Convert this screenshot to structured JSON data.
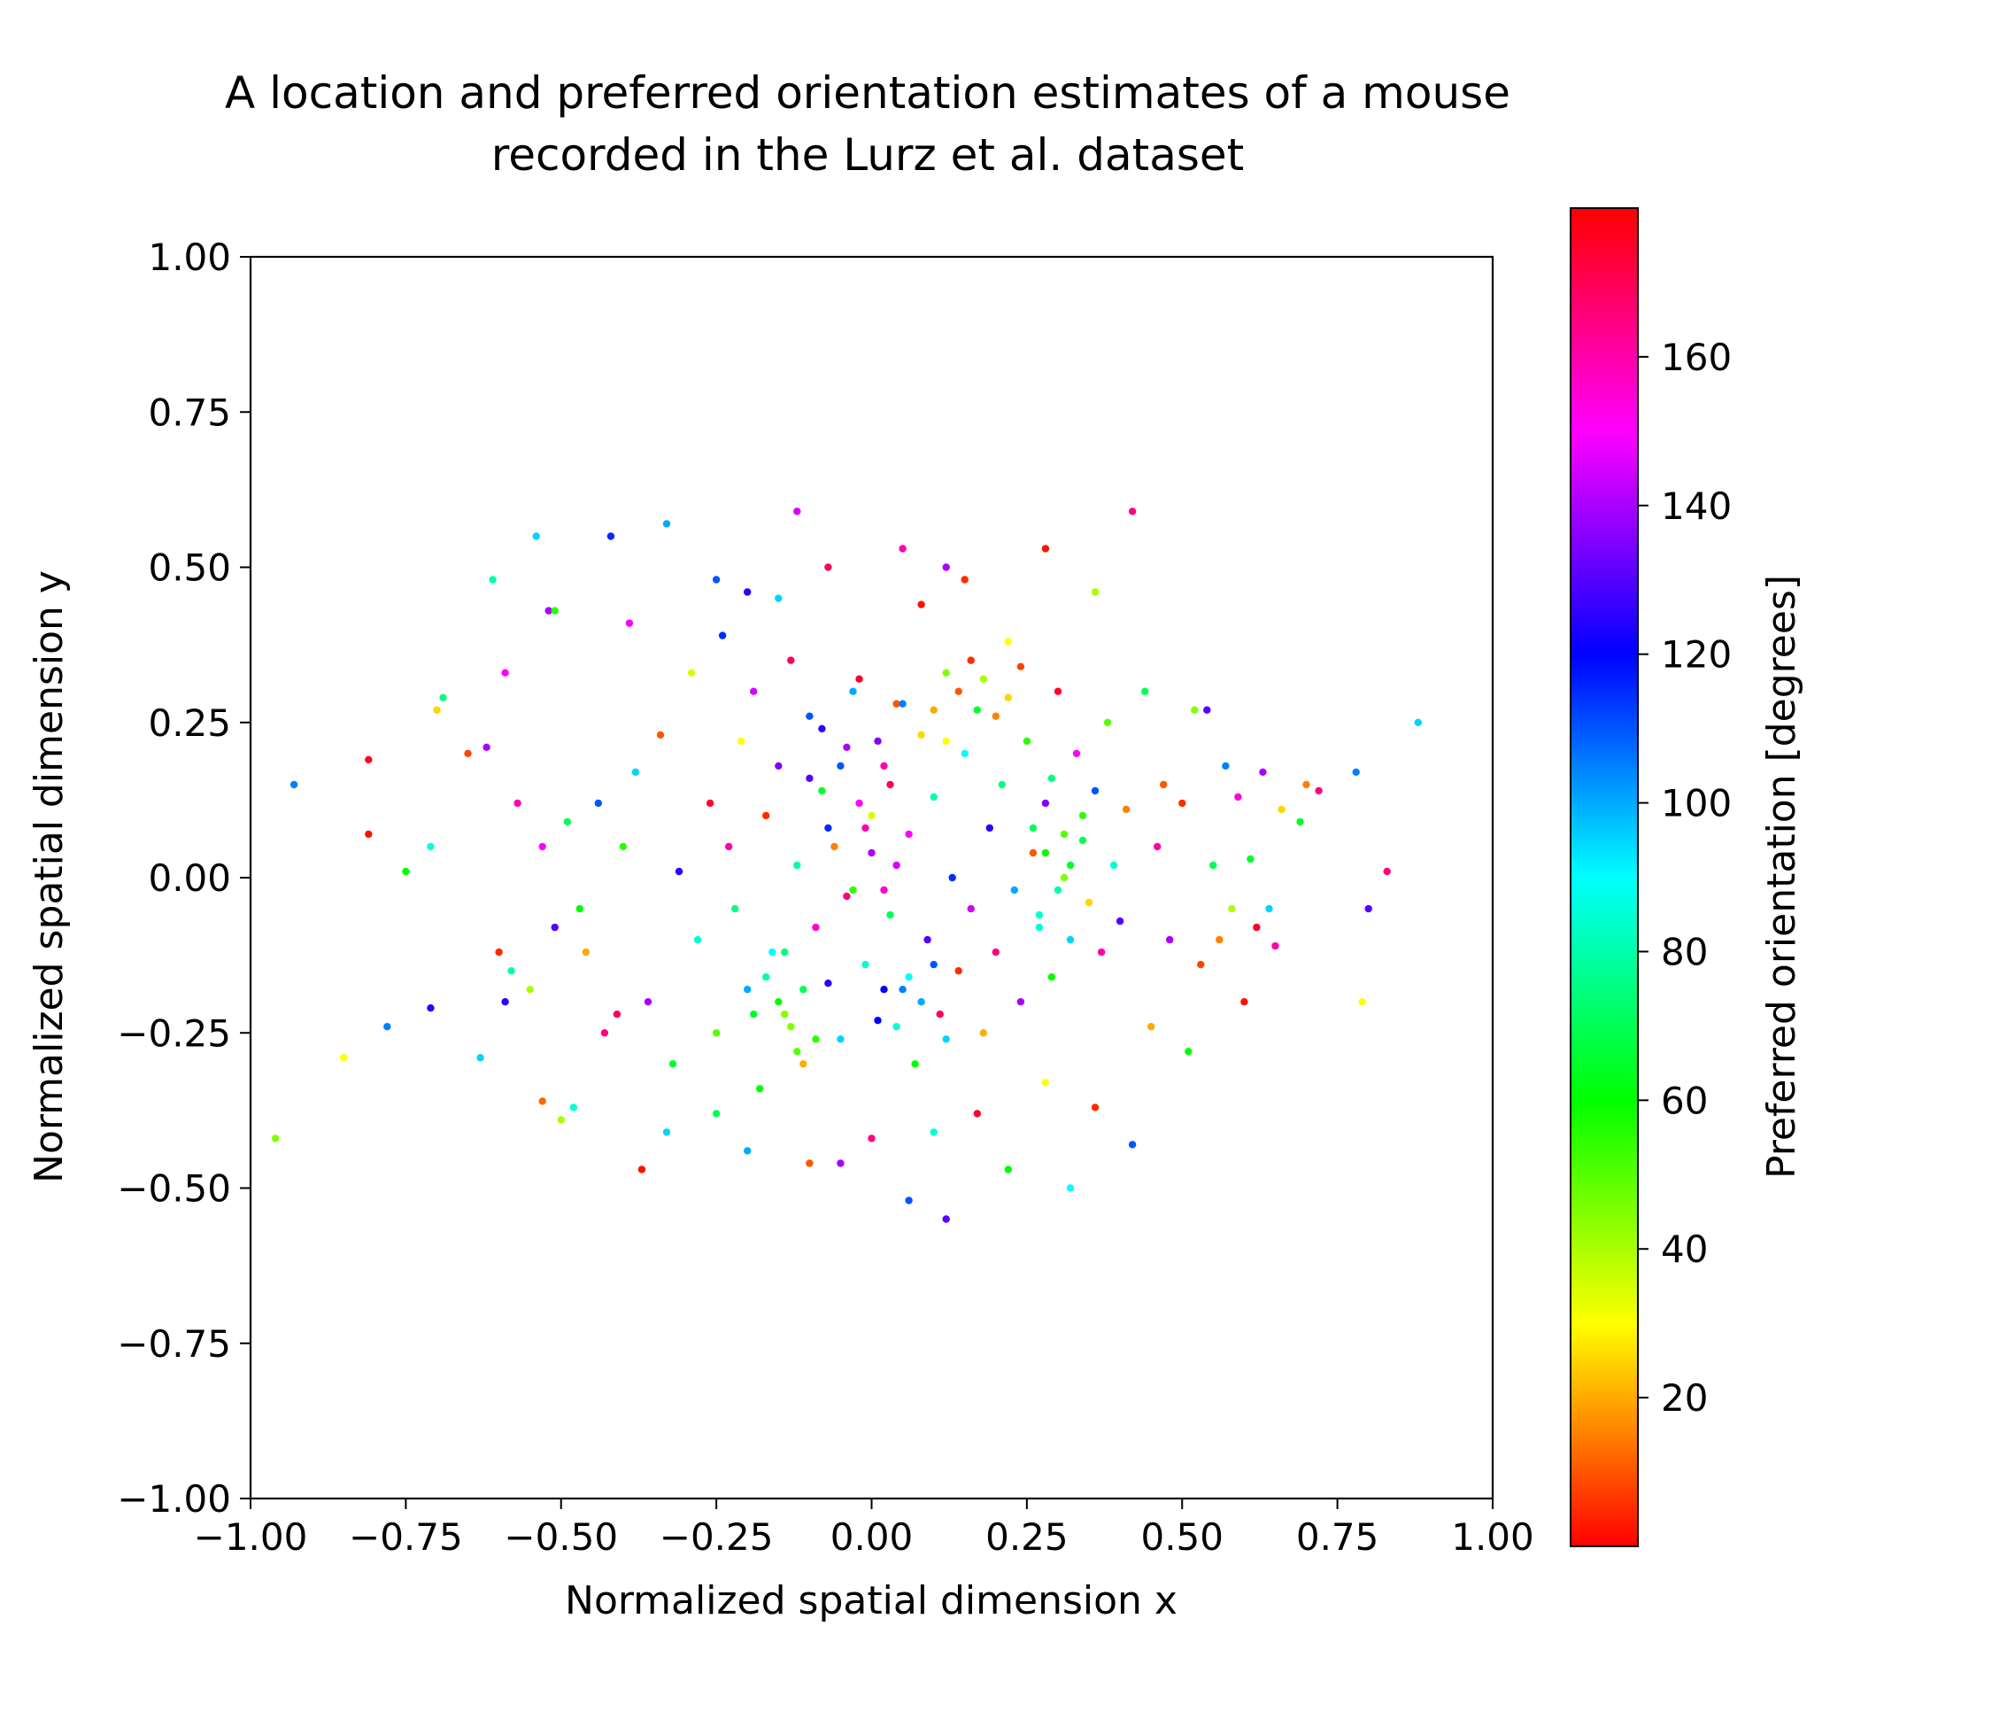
{
  "chart_data": {
    "type": "scatter",
    "title_lines": [
      "A location and preferred orientation estimates of a mouse",
      "recorded in the Lurz et al. dataset"
    ],
    "xlabel": "Normalized spatial dimension x",
    "ylabel": "Normalized spatial dimension y",
    "xlim": [
      -1.0,
      1.0
    ],
    "ylim": [
      -1.0,
      1.0
    ],
    "xticks": [
      -1.0,
      -0.75,
      -0.5,
      -0.25,
      0.0,
      0.25,
      0.5,
      0.75,
      1.0
    ],
    "xtick_labels": [
      "−1.00",
      "−0.75",
      "−0.50",
      "−0.25",
      "0.00",
      "0.25",
      "0.50",
      "0.75",
      "1.00"
    ],
    "yticks": [
      -1.0,
      -0.75,
      -0.5,
      -0.25,
      0.0,
      0.25,
      0.5,
      0.75,
      1.0
    ],
    "ytick_labels": [
      "−1.00",
      "−0.75",
      "−0.50",
      "−0.25",
      "0.00",
      "0.25",
      "0.50",
      "0.75",
      "1.00"
    ],
    "grid": false,
    "colorbar": {
      "label": "Preferred orientation [degrees]",
      "colormap": "hsv",
      "range": [
        0,
        180
      ],
      "ticks": [
        20,
        40,
        60,
        80,
        100,
        120,
        140,
        160
      ],
      "tick_labels": [
        "20",
        "40",
        "60",
        "80",
        "100",
        "120",
        "140",
        "160"
      ]
    },
    "points": [
      [
        -0.96,
        -0.42,
        45
      ],
      [
        -0.93,
        0.15,
        105
      ],
      [
        -0.85,
        -0.29,
        30
      ],
      [
        -0.81,
        0.19,
        175
      ],
      [
        -0.81,
        0.07,
        2
      ],
      [
        -0.78,
        -0.24,
        105
      ],
      [
        -0.75,
        0.01,
        60
      ],
      [
        -0.71,
        -0.21,
        125
      ],
      [
        -0.71,
        0.05,
        85
      ],
      [
        -0.7,
        0.27,
        25
      ],
      [
        -0.69,
        0.29,
        75
      ],
      [
        -0.65,
        0.2,
        8
      ],
      [
        -0.63,
        -0.29,
        95
      ],
      [
        -0.62,
        0.21,
        140
      ],
      [
        -0.61,
        0.48,
        80
      ],
      [
        -0.59,
        -0.2,
        125
      ],
      [
        -0.59,
        0.33,
        150
      ],
      [
        -0.57,
        0.12,
        160
      ],
      [
        -0.54,
        0.55,
        95
      ],
      [
        -0.53,
        -0.36,
        12
      ],
      [
        -0.52,
        0.43,
        140
      ],
      [
        -0.51,
        0.43,
        55
      ],
      [
        -0.5,
        -0.39,
        40
      ],
      [
        -0.48,
        -0.37,
        85
      ],
      [
        -0.47,
        -0.05,
        60
      ],
      [
        -0.42,
        0.55,
        115
      ],
      [
        -0.41,
        -0.22,
        170
      ],
      [
        -0.39,
        0.41,
        150
      ],
      [
        -0.37,
        -0.47,
        2
      ],
      [
        -0.33,
        0.57,
        100
      ],
      [
        -0.33,
        -0.41,
        95
      ],
      [
        -0.6,
        -0.12,
        5
      ],
      [
        -0.58,
        -0.15,
        80
      ],
      [
        -0.55,
        -0.18,
        40
      ],
      [
        -0.53,
        0.05,
        150
      ],
      [
        -0.51,
        -0.08,
        130
      ],
      [
        -0.49,
        0.09,
        70
      ],
      [
        -0.46,
        -0.12,
        20
      ],
      [
        -0.44,
        0.12,
        110
      ],
      [
        -0.43,
        -0.25,
        165
      ],
      [
        -0.4,
        0.05,
        55
      ],
      [
        -0.38,
        0.17,
        95
      ],
      [
        -0.36,
        -0.2,
        140
      ],
      [
        -0.34,
        0.23,
        10
      ],
      [
        -0.32,
        -0.3,
        65
      ],
      [
        -0.31,
        0.01,
        125
      ],
      [
        -0.29,
        0.33,
        35
      ],
      [
        -0.28,
        -0.1,
        85
      ],
      [
        -0.26,
        0.12,
        175
      ],
      [
        -0.25,
        -0.25,
        50
      ],
      [
        -0.24,
        0.39,
        115
      ],
      [
        -0.23,
        0.05,
        160
      ],
      [
        -0.22,
        -0.05,
        75
      ],
      [
        -0.21,
        0.22,
        30
      ],
      [
        -0.2,
        -0.18,
        100
      ],
      [
        -0.19,
        0.3,
        145
      ],
      [
        -0.18,
        -0.34,
        60
      ],
      [
        -0.17,
        0.1,
        5
      ],
      [
        -0.16,
        -0.12,
        90
      ],
      [
        -0.15,
        0.18,
        135
      ],
      [
        -0.14,
        -0.22,
        45
      ],
      [
        -0.13,
        0.35,
        170
      ],
      [
        -0.12,
        0.02,
        80
      ],
      [
        -0.11,
        -0.3,
        20
      ],
      [
        -0.1,
        0.26,
        110
      ],
      [
        -0.09,
        -0.08,
        155
      ],
      [
        -0.08,
        0.14,
        65
      ],
      [
        -0.07,
        -0.17,
        125
      ],
      [
        -0.06,
        0.05,
        15
      ],
      [
        -0.05,
        -0.26,
        95
      ],
      [
        -0.04,
        0.21,
        140
      ],
      [
        -0.03,
        -0.02,
        55
      ],
      [
        -0.02,
        0.32,
        175
      ],
      [
        -0.01,
        -0.14,
        85
      ],
      [
        0.0,
        0.1,
        35
      ],
      [
        0.01,
        -0.23,
        120
      ],
      [
        0.02,
        0.18,
        160
      ],
      [
        0.03,
        -0.06,
        70
      ],
      [
        0.04,
        0.28,
        10
      ],
      [
        0.05,
        -0.18,
        105
      ],
      [
        0.06,
        0.07,
        150
      ],
      [
        0.07,
        -0.3,
        60
      ],
      [
        0.08,
        0.23,
        25
      ],
      [
        0.09,
        -0.1,
        130
      ],
      [
        0.1,
        0.13,
        80
      ],
      [
        0.11,
        -0.22,
        170
      ],
      [
        0.12,
        0.33,
        45
      ],
      [
        0.13,
        0.0,
        115
      ],
      [
        0.14,
        -0.15,
        5
      ],
      [
        0.15,
        0.2,
        90
      ],
      [
        0.16,
        -0.05,
        145
      ],
      [
        0.17,
        0.27,
        65
      ],
      [
        0.18,
        -0.25,
        20
      ],
      [
        0.19,
        0.08,
        125
      ],
      [
        0.2,
        -0.12,
        165
      ],
      [
        0.21,
        0.15,
        75
      ],
      [
        0.22,
        0.38,
        30
      ],
      [
        0.23,
        -0.02,
        100
      ],
      [
        0.24,
        -0.2,
        140
      ],
      [
        0.25,
        0.22,
        55
      ],
      [
        0.26,
        0.04,
        10
      ],
      [
        0.27,
        -0.08,
        85
      ],
      [
        0.28,
        0.12,
        135
      ],
      [
        0.29,
        -0.16,
        60
      ],
      [
        0.3,
        0.3,
        175
      ],
      [
        0.31,
        0.0,
        45
      ],
      [
        0.32,
        -0.1,
        95
      ],
      [
        0.33,
        0.2,
        150
      ],
      [
        0.34,
        0.06,
        70
      ],
      [
        0.35,
        -0.04,
        25
      ],
      [
        0.36,
        0.14,
        110
      ],
      [
        0.37,
        -0.12,
        160
      ],
      [
        0.38,
        0.25,
        50
      ],
      [
        0.39,
        0.02,
        85
      ],
      [
        0.4,
        -0.07,
        130
      ],
      [
        0.41,
        0.11,
        15
      ],
      [
        0.42,
        0.59,
        165
      ],
      [
        0.42,
        -0.43,
        110
      ],
      [
        0.44,
        0.3,
        70
      ],
      [
        0.45,
        -0.24,
        20
      ],
      [
        0.46,
        0.05,
        160
      ],
      [
        0.47,
        0.15,
        10
      ],
      [
        0.48,
        -0.1,
        140
      ],
      [
        0.5,
        0.12,
        5
      ],
      [
        0.51,
        -0.28,
        60
      ],
      [
        0.52,
        0.27,
        45
      ],
      [
        0.53,
        -0.14,
        8
      ],
      [
        0.54,
        0.27,
        130
      ],
      [
        0.55,
        0.02,
        70
      ],
      [
        0.56,
        -0.1,
        15
      ],
      [
        0.57,
        0.18,
        105
      ],
      [
        0.58,
        -0.05,
        40
      ],
      [
        0.59,
        0.13,
        155
      ],
      [
        0.6,
        -0.2,
        2
      ],
      [
        0.61,
        0.03,
        65
      ],
      [
        0.62,
        -0.08,
        175
      ],
      [
        0.63,
        0.17,
        140
      ],
      [
        0.64,
        -0.05,
        95
      ],
      [
        0.65,
        -0.11,
        160
      ],
      [
        0.66,
        0.11,
        25
      ],
      [
        0.69,
        0.09,
        65
      ],
      [
        0.7,
        0.15,
        15
      ],
      [
        0.72,
        0.14,
        165
      ],
      [
        0.78,
        0.17,
        105
      ],
      [
        0.79,
        -0.2,
        30
      ],
      [
        0.8,
        -0.05,
        130
      ],
      [
        0.83,
        0.01,
        165
      ],
      [
        0.88,
        0.25,
        95
      ],
      [
        -0.12,
        0.59,
        145
      ],
      [
        0.05,
        0.53,
        160
      ],
      [
        0.12,
        0.5,
        140
      ],
      [
        0.15,
        0.48,
        5
      ],
      [
        -0.25,
        0.48,
        110
      ],
      [
        -0.2,
        0.46,
        125
      ],
      [
        -0.15,
        0.45,
        95
      ],
      [
        0.08,
        0.44,
        2
      ],
      [
        -0.07,
        0.5,
        170
      ],
      [
        0.28,
        0.53,
        2
      ],
      [
        0.36,
        0.46,
        40
      ],
      [
        -0.05,
        -0.46,
        140
      ],
      [
        0.06,
        -0.52,
        110
      ],
      [
        0.12,
        -0.55,
        130
      ],
      [
        0.22,
        -0.47,
        60
      ],
      [
        0.32,
        -0.5,
        90
      ],
      [
        -0.1,
        -0.46,
        10
      ],
      [
        0.0,
        -0.42,
        165
      ],
      [
        -0.2,
        -0.44,
        100
      ],
      [
        0.36,
        -0.37,
        5
      ],
      [
        0.28,
        -0.33,
        30
      ],
      [
        -0.25,
        -0.38,
        70
      ],
      [
        0.1,
        -0.41,
        85
      ],
      [
        0.17,
        -0.38,
        175
      ],
      [
        -0.02,
        0.12,
        150
      ],
      [
        -0.01,
        0.08,
        160
      ],
      [
        0.0,
        0.04,
        140
      ],
      [
        0.02,
        -0.02,
        155
      ],
      [
        0.03,
        0.15,
        170
      ],
      [
        0.04,
        0.02,
        145
      ],
      [
        -0.04,
        -0.03,
        165
      ],
      [
        0.01,
        0.22,
        135
      ],
      [
        0.1,
        0.27,
        20
      ],
      [
        0.12,
        0.22,
        30
      ],
      [
        0.14,
        0.3,
        10
      ],
      [
        0.16,
        0.35,
        5
      ],
      [
        0.18,
        0.32,
        40
      ],
      [
        0.2,
        0.26,
        15
      ],
      [
        0.22,
        0.29,
        25
      ],
      [
        0.24,
        0.34,
        8
      ],
      [
        0.26,
        0.08,
        70
      ],
      [
        0.28,
        0.04,
        60
      ],
      [
        0.3,
        -0.02,
        80
      ],
      [
        0.32,
        0.02,
        65
      ],
      [
        0.34,
        0.1,
        55
      ],
      [
        0.29,
        0.16,
        75
      ],
      [
        0.31,
        0.07,
        50
      ],
      [
        0.27,
        -0.06,
        85
      ],
      [
        -0.15,
        -0.2,
        60
      ],
      [
        -0.13,
        -0.24,
        45
      ],
      [
        -0.11,
        -0.18,
        70
      ],
      [
        -0.09,
        -0.26,
        55
      ],
      [
        -0.17,
        -0.16,
        80
      ],
      [
        -0.19,
        -0.22,
        65
      ],
      [
        -0.12,
        -0.28,
        50
      ],
      [
        -0.14,
        -0.12,
        75
      ],
      [
        0.06,
        -0.16,
        90
      ],
      [
        0.08,
        -0.2,
        100
      ],
      [
        0.04,
        -0.24,
        85
      ],
      [
        0.1,
        -0.14,
        110
      ],
      [
        0.02,
        -0.18,
        120
      ],
      [
        0.12,
        -0.26,
        95
      ],
      [
        -0.05,
        0.18,
        110
      ],
      [
        -0.08,
        0.24,
        125
      ],
      [
        -0.03,
        0.3,
        100
      ],
      [
        -0.07,
        0.08,
        115
      ],
      [
        -0.1,
        0.16,
        130
      ],
      [
        0.05,
        0.28,
        105
      ]
    ]
  }
}
